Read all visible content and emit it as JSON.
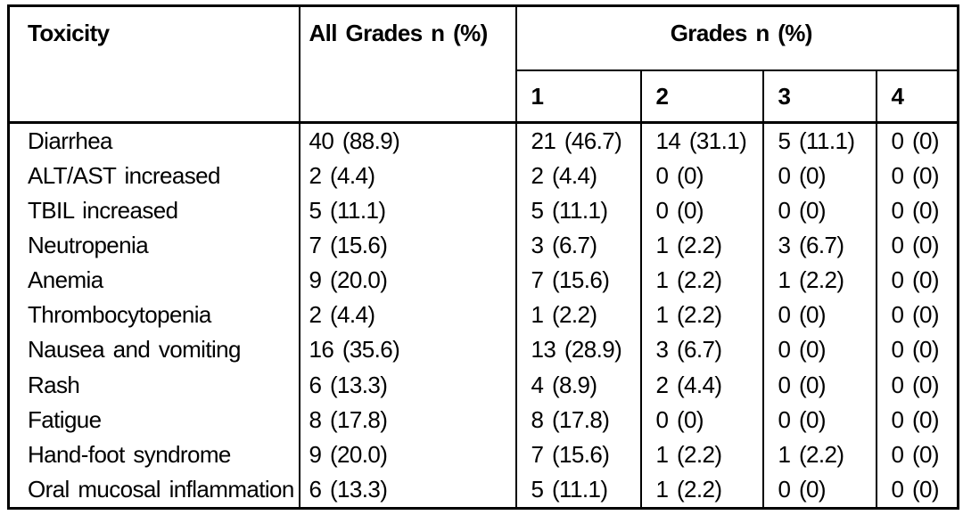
{
  "page": {
    "background_color": "#ffffff",
    "text_color": "#000000",
    "border_color": "#000000"
  },
  "table": {
    "header": {
      "toxicity": "Toxicity",
      "all_grades": "All Grades n (%)",
      "grades_group": "Grades n (%)",
      "grade_columns": [
        "1",
        "2",
        "3",
        "4"
      ]
    },
    "rows": [
      [
        "Diarrhea",
        "40 (88.9)",
        "21 (46.7)",
        "14 (31.1)",
        "5 (11.1)",
        "0 (0)"
      ],
      [
        "ALT/AST increased",
        "2 (4.4)",
        "2 (4.4)",
        "0 (0)",
        "0 (0)",
        "0 (0)"
      ],
      [
        "TBIL increased",
        "5 (11.1)",
        "5 (11.1)",
        "0 (0)",
        "0 (0)",
        "0 (0)"
      ],
      [
        "Neutropenia",
        "7 (15.6)",
        "3 (6.7)",
        "1 (2.2)",
        "3 (6.7)",
        "0 (0)"
      ],
      [
        "Anemia",
        "9 (20.0)",
        "7 (15.6)",
        "1 (2.2)",
        "1 (2.2)",
        "0 (0)"
      ],
      [
        "Thrombocytopenia",
        "2 (4.4)",
        "1 (2.2)",
        "1 (2.2)",
        "0 (0)",
        "0 (0)"
      ],
      [
        "Nausea and vomiting",
        "16 (35.6)",
        "13 (28.9)",
        "3 (6.7)",
        "0 (0)",
        "0 (0)"
      ],
      [
        "Rash",
        "6 (13.3)",
        "4 (8.9)",
        "2 (4.4)",
        "0 (0)",
        "0 (0)"
      ],
      [
        "Fatigue",
        "8 (17.8)",
        "8 (17.8)",
        "0 (0)",
        "0 (0)",
        "0 (0)"
      ],
      [
        "Hand-foot syndrome",
        "9 (20.0)",
        "7 (15.6)",
        "1 (2.2)",
        "1 (2.2)",
        "0 (0)"
      ],
      [
        "Oral mucosal inflammation",
        "6 (13.3)",
        "5 (11.1)",
        "1 (2.2)",
        "0 (0)",
        "0 (0)"
      ]
    ]
  }
}
